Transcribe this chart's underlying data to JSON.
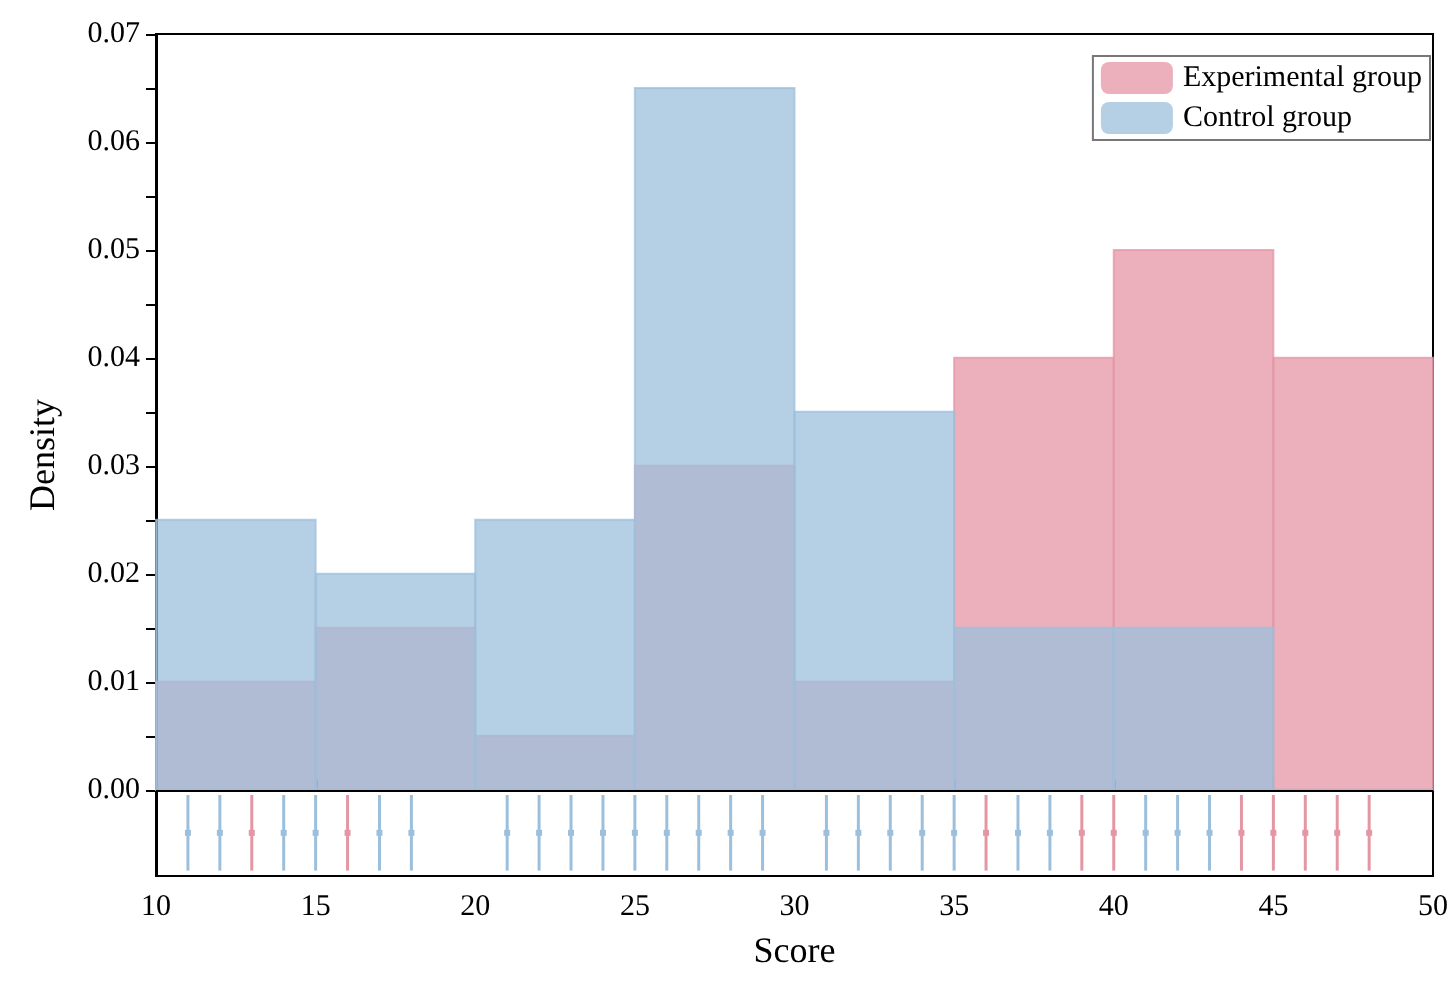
{
  "chart_data": {
    "type": "histogram",
    "xlabel": "Score",
    "ylabel": "Density",
    "bins": [
      10,
      15,
      20,
      25,
      30,
      35,
      40,
      45,
      50
    ],
    "series": [
      {
        "name": "Experimental group",
        "color": "#e496a5",
        "values": [
          0.01,
          0.015,
          0.005,
          0.03,
          0.01,
          0.04,
          0.05,
          0.04
        ]
      },
      {
        "name": "Control group",
        "color": "#9cbfdc",
        "values": [
          0.025,
          0.02,
          0.025,
          0.065,
          0.035,
          0.015,
          0.015,
          0
        ]
      },
      {
        "type": "scatter",
        "marker": "square",
        "color": "#e496a5",
        "x": [
          13,
          16,
          36,
          39,
          40,
          44,
          45,
          46,
          47,
          48
        ],
        "values": [
          -0.004,
          -0.004,
          -0.004,
          -0.004,
          -0.004,
          -0.004,
          -0.004,
          -0.004,
          -0.004,
          -0.004
        ],
        "errors": [
          0.0035,
          0.0035,
          0.0035,
          0.0035,
          0.0035,
          0.0035,
          0.0035,
          0.0035,
          0.0035,
          0.0035
        ]
      },
      {
        "type": "scatter",
        "marker": "square",
        "color": "#9cbfdc",
        "x": [
          11,
          12,
          14,
          15,
          17,
          18,
          21,
          22,
          23,
          24,
          25,
          26,
          27,
          28,
          29,
          31,
          32,
          33,
          34,
          35,
          37,
          38,
          41,
          42,
          43
        ],
        "values": [
          -0.004,
          -0.004,
          -0.004,
          -0.004,
          -0.004,
          -0.004,
          -0.004,
          -0.004,
          -0.004,
          -0.004,
          -0.004,
          -0.004,
          -0.004,
          -0.004,
          -0.004,
          -0.004,
          -0.004,
          -0.004,
          -0.004,
          -0.004,
          -0.004,
          -0.004,
          -0.004,
          -0.004,
          -0.004
        ],
        "errors": [
          0.0035,
          0.0035,
          0.0035,
          0.0035,
          0.0035,
          0.0035,
          0.0035,
          0.0035,
          0.0035,
          0.0035,
          0.0035,
          0.0035,
          0.0035,
          0.0035,
          0.0035,
          0.0035,
          0.0035,
          0.0035,
          0.0035,
          0.0035,
          0.0035,
          0.0035,
          0.0035,
          0.0035,
          0.0035
        ]
      }
    ],
    "xlim": [
      10,
      50
    ],
    "xticks": [
      10,
      15,
      20,
      25,
      30,
      35,
      40,
      45,
      50
    ],
    "ylim": [
      -0.008,
      0.07
    ],
    "yticks": [
      {
        "value": 0,
        "label": "0.00"
      },
      {
        "value": 0.005,
        "label": null
      },
      {
        "value": 0.01,
        "label": "0.01"
      },
      {
        "value": 0.015,
        "label": null
      },
      {
        "value": 0.02,
        "label": "0.02"
      },
      {
        "value": 0.025,
        "label": null
      },
      {
        "value": 0.03,
        "label": "0.03"
      },
      {
        "value": 0.035,
        "label": null
      },
      {
        "value": 0.04,
        "label": "0.04"
      },
      {
        "value": 0.045,
        "label": null
      },
      {
        "value": 0.05,
        "label": "0.05"
      },
      {
        "value": 0.055,
        "label": null
      },
      {
        "value": 0.06,
        "label": "0.06"
      },
      {
        "value": 0.065,
        "label": null
      },
      {
        "value": 0.07,
        "label": "0.07"
      }
    ],
    "ref_lines": [
      {
        "axis": "y",
        "value": 0,
        "color": "#000000"
      }
    ],
    "grid": false,
    "legend": "top right"
  }
}
